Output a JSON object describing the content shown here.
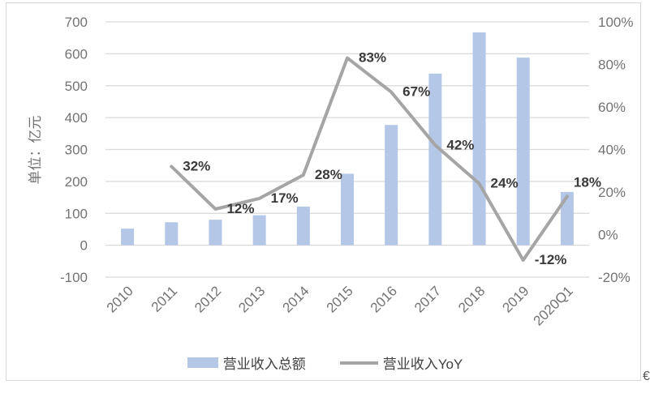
{
  "chart_data": {
    "type": "bar+line combo",
    "title": "",
    "ylabel_left": "单位：亿元",
    "categories": [
      "2010",
      "2011",
      "2012",
      "2013",
      "2014",
      "2015",
      "2016",
      "2017",
      "2018",
      "2019",
      "2020Q1"
    ],
    "series": [
      {
        "name": "营业收入总额",
        "type": "bar",
        "axis": "left",
        "color": "#B4C7E7",
        "values": [
          52,
          72,
          80,
          94,
          121,
          224,
          377,
          538,
          667,
          588,
          167
        ]
      },
      {
        "name": "营业收入YoY",
        "type": "line",
        "axis": "right",
        "color": "#A5A5A5",
        "values": [
          null,
          32,
          12,
          17,
          28,
          83,
          67,
          42,
          24,
          -12,
          18
        ],
        "labels": [
          null,
          "32%",
          "12%",
          "17%",
          "28%",
          "83%",
          "67%",
          "42%",
          "24%",
          "-12%",
          "18%"
        ]
      }
    ],
    "left_axis": {
      "min": -100,
      "max": 700,
      "step": 100,
      "tick_labels": [
        "700",
        "600",
        "500",
        "400",
        "300",
        "200",
        "100",
        "0",
        "-100"
      ]
    },
    "right_axis": {
      "min": -20,
      "max": 100,
      "step": 20,
      "tick_labels": [
        "100%",
        "80%",
        "60%",
        "40%",
        "20%",
        "0%",
        "-20%"
      ]
    },
    "grid": true,
    "legend_position": "bottom",
    "legend": [
      {
        "label": "营业收入总额",
        "swatch": "bar",
        "color": "#B4C7E7"
      },
      {
        "label": "营业收入YoY",
        "swatch": "line",
        "color": "#A5A5A5"
      }
    ]
  },
  "colors": {
    "bar": "#B4C7E7",
    "line": "#A5A5A5",
    "gridline": "#D9D9D9",
    "tick_text": "#737373",
    "data_label_text": "#3A3A3A",
    "frame_border": "#D7D7D7"
  },
  "decorations": {
    "corner_glyph": "€"
  }
}
